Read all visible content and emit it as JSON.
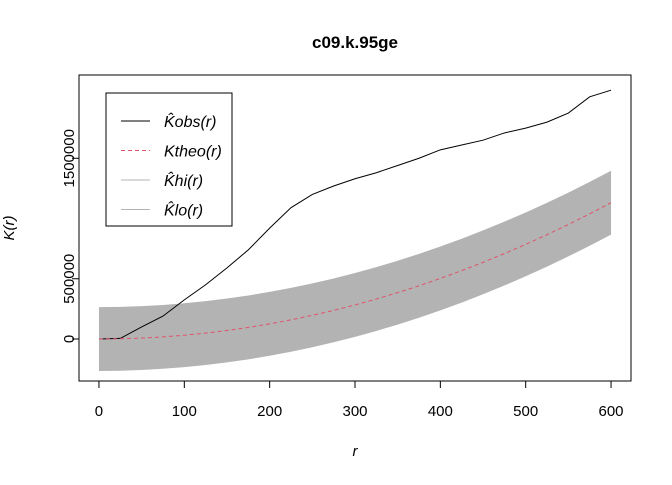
{
  "chart_data": {
    "type": "envelope",
    "title": "c09.k.95ge",
    "x_label": "r",
    "y_label": "K(r)",
    "x": [
      0,
      25,
      50,
      75,
      100,
      125,
      150,
      175,
      200,
      225,
      250,
      275,
      300,
      325,
      350,
      375,
      400,
      425,
      450,
      475,
      500,
      525,
      550,
      575,
      600
    ],
    "series": [
      {
        "name": "K̂obs(r)",
        "color": "#000000",
        "dashed": false,
        "values": [
          0,
          5000,
          100000,
          190000,
          325000,
          450000,
          590000,
          740000,
          920000,
          1090000,
          1200000,
          1270000,
          1330000,
          1380000,
          1440000,
          1500000,
          1570000,
          1610000,
          1650000,
          1710000,
          1750000,
          1800000,
          1875000,
          2010000,
          2065000
        ]
      },
      {
        "name": "Ktheo(r)",
        "color": "#df536b",
        "dashed": true,
        "values": [
          0,
          1963,
          7854,
          17671,
          31416,
          49087,
          70686,
          96211,
          125664,
          159043,
          196350,
          237583,
          282743,
          331831,
          384845,
          441786,
          502655,
          567450,
          636173,
          708822,
          785398,
          865901,
          950332,
          1038689,
          1130973
        ]
      },
      {
        "name": "K̂hi(r)",
        "color": "#b3b3b3",
        "dashed": false,
        "values": [
          265000,
          266963,
          272854,
          282671,
          296416,
          314087,
          335686,
          361211,
          390664,
          424043,
          461350,
          502583,
          547743,
          596831,
          649845,
          706786,
          767655,
          832450,
          901173,
          973822,
          1050398,
          1130901,
          1215332,
          1303689,
          1395973
        ]
      },
      {
        "name": "K̂lo(r)",
        "color": "#b3b3b3",
        "dashed": false,
        "values": [
          -265000,
          -263037,
          -257146,
          -247329,
          -233584,
          -215913,
          -194314,
          -168789,
          -139336,
          -105957,
          -68650,
          -27417,
          17743,
          66831,
          119845,
          176786,
          237655,
          302450,
          371173,
          443822,
          520398,
          600901,
          685332,
          773689,
          865973
        ]
      }
    ],
    "xlim": [
      -23.4,
      623.4
    ],
    "ylim": [
      -348500,
      2191000
    ],
    "xticks": [
      0,
      100,
      200,
      300,
      400,
      500,
      600
    ],
    "yticks": [
      0,
      500000,
      1500000
    ],
    "legend": "top-left"
  }
}
